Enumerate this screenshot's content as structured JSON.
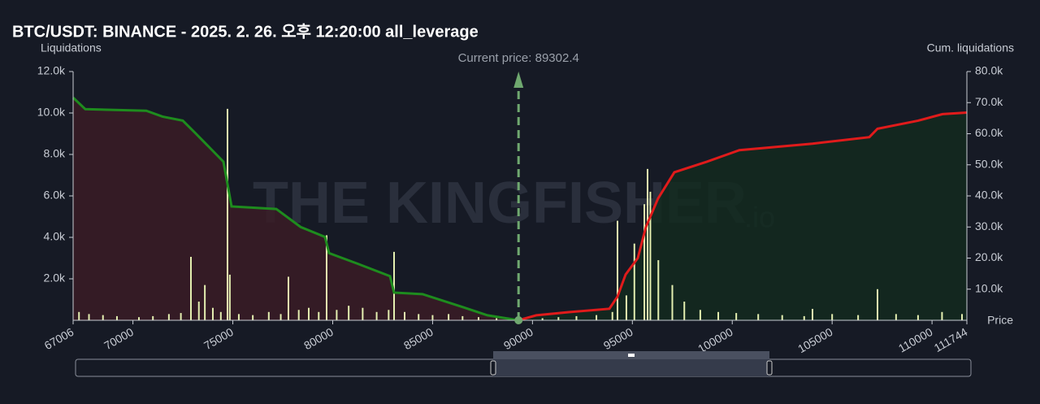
{
  "chart_data": {
    "type": "bar",
    "title": "BTC/USDT: BINANCE - 2025. 2. 26. 오후 12:20:00 all_leverage",
    "y_label": "Liquidations",
    "y2_label": "Cum. liquidations",
    "x_label": "Price",
    "watermark": "THE KINGFISHER",
    "watermark_suffix": ".io",
    "annotation": {
      "label": "Current price: 89302.4",
      "value": 89302.4,
      "color": "#6fa86f"
    },
    "xlim": [
      67006,
      111744
    ],
    "xticks": [
      67006,
      70000,
      75000,
      80000,
      85000,
      90000,
      95000,
      100000,
      105000,
      110000,
      111744
    ],
    "ylim": [
      0,
      12000
    ],
    "yticks": [
      {
        "value": 2000,
        "label": "2.0k"
      },
      {
        "value": 4000,
        "label": "4.0k"
      },
      {
        "value": 6000,
        "label": "6.0k"
      },
      {
        "value": 8000,
        "label": "8.0k"
      },
      {
        "value": 10000,
        "label": "10.0k"
      },
      {
        "value": 12000,
        "label": "12.0k"
      }
    ],
    "y2lim": [
      0,
      80000
    ],
    "y2ticks": [
      {
        "value": 10000,
        "label": "10.0k"
      },
      {
        "value": 20000,
        "label": "20.0k"
      },
      {
        "value": 30000,
        "label": "30.0k"
      },
      {
        "value": 40000,
        "label": "40.0k"
      },
      {
        "value": 50000,
        "label": "50.0k"
      },
      {
        "value": 60000,
        "label": "60.0k"
      },
      {
        "value": 70000,
        "label": "70.0k"
      },
      {
        "value": 80000,
        "label": "80.0k"
      }
    ],
    "grid": false,
    "series": [
      {
        "type": "bar",
        "color": "#e4efb0",
        "x": [
          67300,
          67800,
          68500,
          69200,
          70300,
          71000,
          71800,
          72400,
          72903,
          73300,
          73600,
          74000,
          74400,
          74733,
          74850,
          75300,
          76000,
          76800,
          77400,
          77783,
          78300,
          78800,
          79300,
          79695,
          80200,
          80800,
          81500,
          82200,
          82800,
          83071,
          83600,
          84300,
          85000,
          85800,
          86500,
          87300,
          88200,
          90500,
          91300,
          92200,
          93200,
          94000,
          94255,
          94700,
          95100,
          95600,
          95760,
          95900,
          96300,
          97000,
          97600,
          98400,
          99300,
          100200,
          101300,
          102500,
          103600,
          104016,
          105000,
          106300,
          107270,
          108200,
          109300,
          110500,
          111500
        ],
        "values": [
          400,
          300,
          250,
          200,
          150,
          200,
          300,
          350,
          3060,
          900,
          1700,
          600,
          400,
          10200,
          2200,
          300,
          250,
          400,
          300,
          2100,
          500,
          600,
          400,
          4100,
          500,
          700,
          600,
          400,
          500,
          3300,
          400,
          300,
          250,
          300,
          200,
          150,
          100,
          100,
          150,
          200,
          250,
          400,
          4800,
          1200,
          3700,
          5600,
          7300,
          6200,
          2900,
          1700,
          900,
          500,
          400,
          350,
          300,
          250,
          200,
          550,
          300,
          250,
          1500,
          300,
          250,
          400,
          300
        ]
      },
      {
        "type": "line",
        "axis": "y2",
        "color": "#1e8c1e",
        "fill": "#3a1c26",
        "x": [
          67006,
          67616,
          70666,
          71480,
          72496,
          73107,
          73920,
          74530,
          74937,
          77174,
          78394,
          79614,
          79817,
          81241,
          82867,
          83071,
          84494,
          86528,
          87748,
          89302
        ],
        "values": [
          71600,
          67900,
          67400,
          65500,
          64200,
          60300,
          55000,
          51000,
          36600,
          35800,
          30000,
          26800,
          21600,
          18200,
          14200,
          8900,
          8400,
          4200,
          1600,
          0
        ]
      },
      {
        "type": "line",
        "axis": "y2",
        "color": "#e01b1b",
        "fill": "#132a1f",
        "x": [
          89302,
          90188,
          91815,
          93848,
          94255,
          94662,
          95272,
          95679,
          96288,
          97102,
          98729,
          100355,
          104016,
          106863,
          107270,
          109303,
          110523,
          111744
        ],
        "values": [
          0,
          1600,
          2600,
          3700,
          7600,
          14700,
          20000,
          30000,
          39200,
          47600,
          51000,
          54700,
          56800,
          58900,
          61600,
          64200,
          66300,
          66800
        ]
      }
    ]
  }
}
